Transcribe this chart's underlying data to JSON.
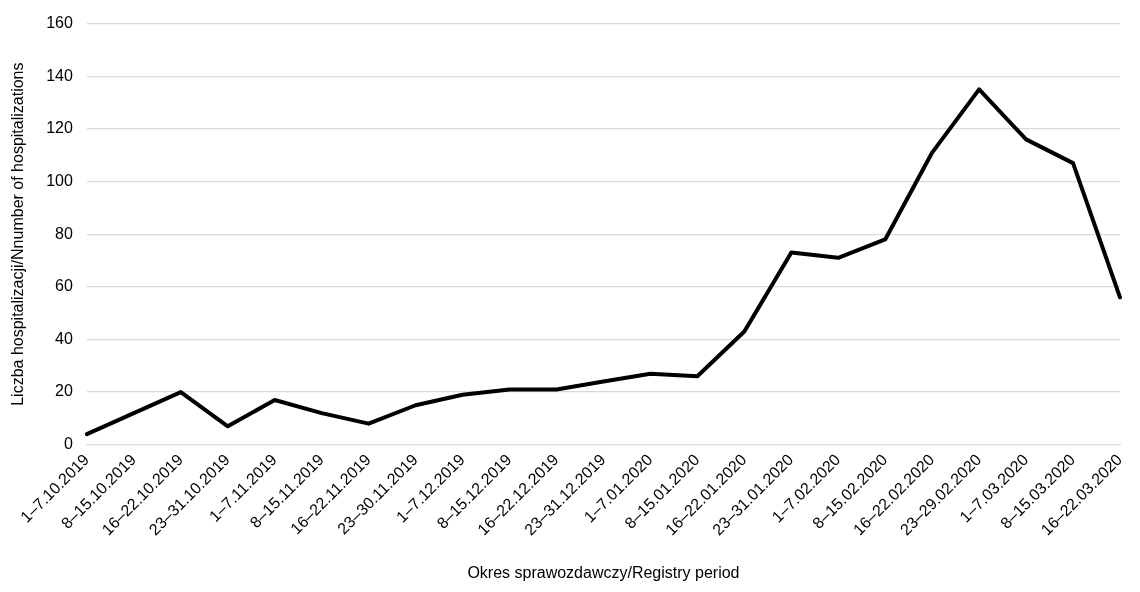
{
  "chart_data": {
    "type": "line",
    "xlabel": "Okres sprawozdawczy/Registry period",
    "ylabel": "Liczba hospitalizacji/Nnumber of hospitalizations",
    "categories": [
      "1–7.10.2019",
      "8–15.10.2019",
      "16–22.10.2019",
      "23–31.10.2019",
      "1–7.11.2019",
      "8–15.11.2019",
      "16–22.11.2019",
      "23–30.11.2019",
      "1–7.12.2019",
      "8–15.12.2019",
      "16–22.12.2019",
      "23–31.12.2019",
      "1–7.01.2020",
      "8–15.01.2020",
      "16–22.01.2020",
      "23–31.01.2020",
      "1–7.02.2020",
      "8–15.02.2020",
      "16–22.02.2020",
      "23–29.02.2020",
      "1–7.03.2020",
      "8–15.03.2020",
      "16–22.03.2020"
    ],
    "series": [
      {
        "color": "#000000",
        "values": [
          4,
          12,
          20,
          7,
          17,
          12,
          8,
          15,
          19,
          21,
          21,
          24,
          27,
          26,
          43,
          73,
          71,
          78,
          111,
          135,
          116,
          107,
          56
        ]
      }
    ],
    "ylim": [
      0,
      160
    ],
    "yticks": [
      0,
      20,
      40,
      60,
      80,
      100,
      120,
      140,
      160
    ],
    "grid": "y",
    "legend": false,
    "marker": "none",
    "line_style": "solid"
  }
}
